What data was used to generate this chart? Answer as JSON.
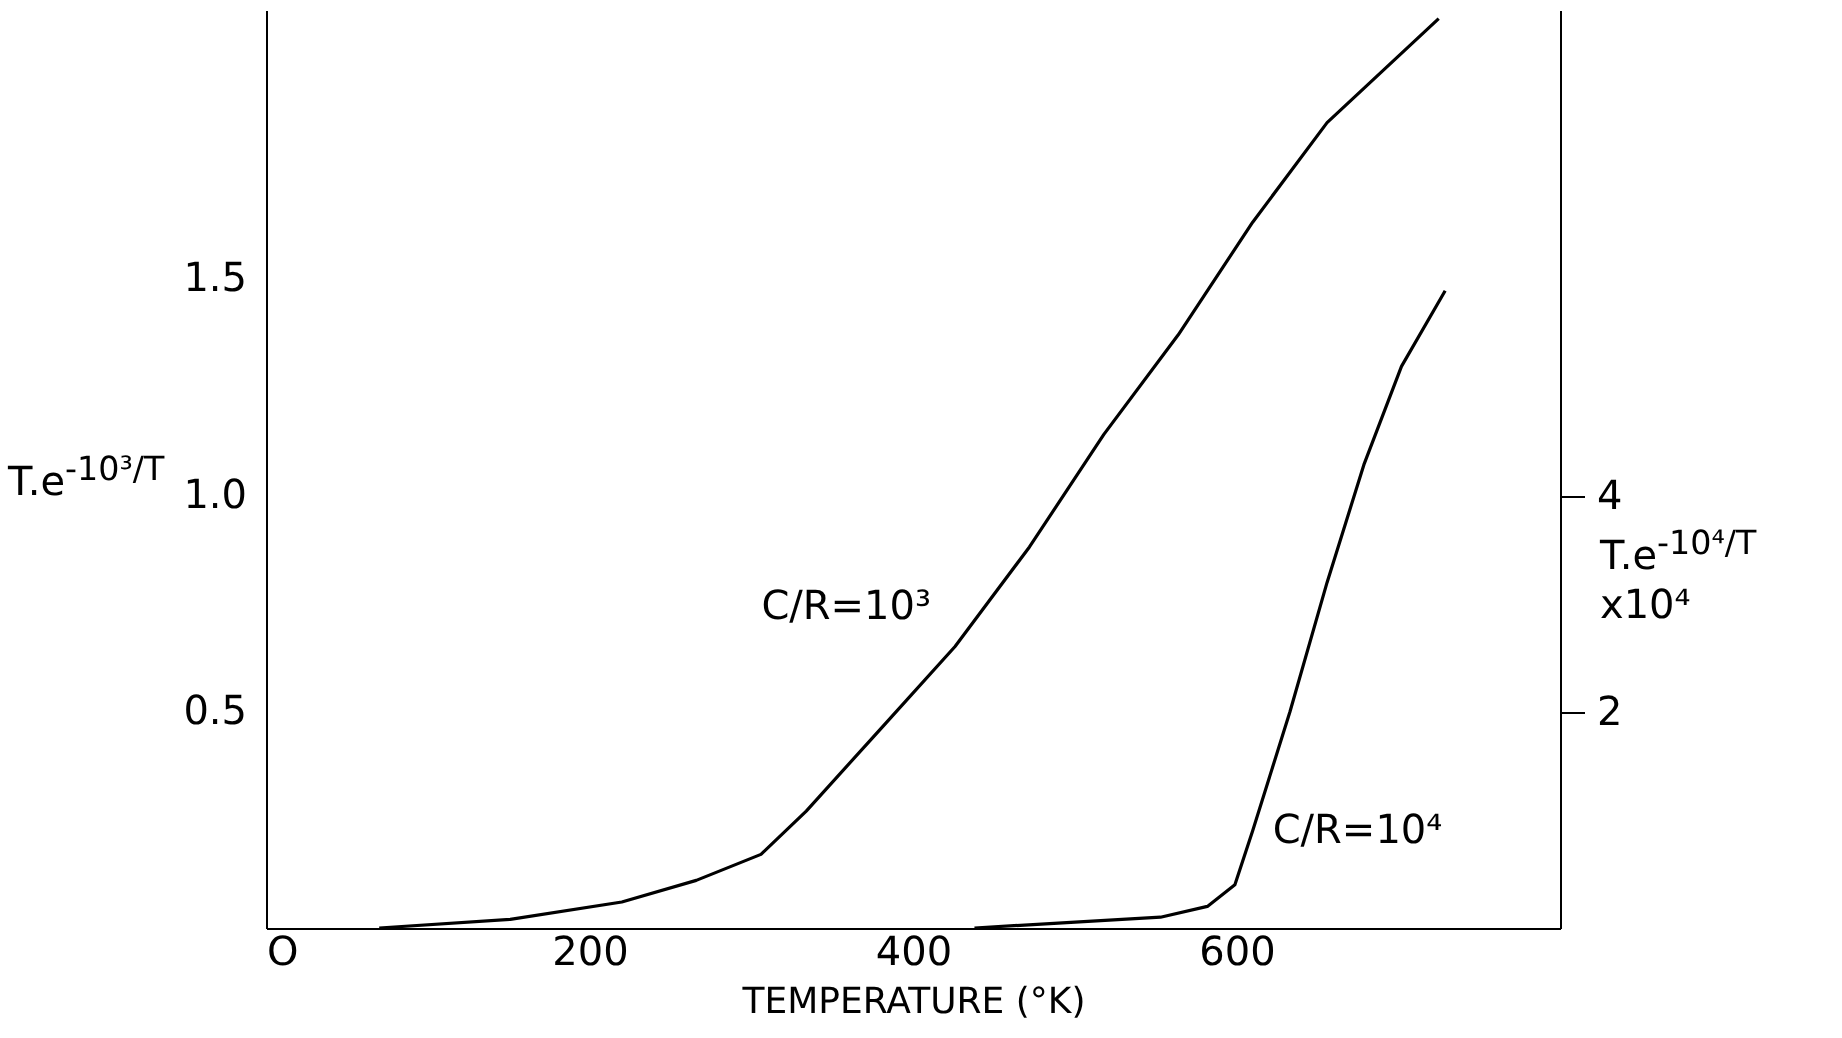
{
  "chart_data": {
    "type": "line",
    "xlabel": "TEMPERATURE (°K)",
    "ylabel": "T.e$^{-10³/T}$",
    "y2label": "T.e$^{-10⁴/T}$ x10⁴",
    "xlim": [
      0,
      800
    ],
    "xticks": [
      {
        "value": 0,
        "label": "O"
      },
      200,
      400,
      600
    ],
    "ylim": [
      0,
      2.12
    ],
    "yticks": [
      0.5,
      {
        "value": 1,
        "label": "1.0"
      },
      1.5
    ],
    "y2lim": [
      0,
      8.5
    ],
    "y2ticks": [
      2,
      4
    ],
    "grid": false,
    "line_style": "solid",
    "marker": "none",
    "series": [
      {
        "name": "C/R=10³",
        "color": "#000000",
        "x": [
          70,
          151,
          220,
          266,
          306,
          334,
          380,
          426,
          472,
          518,
          564,
          610,
          656,
          725
        ],
        "values": [
          0,
          0.02,
          0.06,
          0.11,
          0.17,
          0.27,
          0.46,
          0.65,
          0.88,
          1.14,
          1.37,
          1.63,
          1.86,
          2.1
        ]
      },
      {
        "name": "C/R=10⁴",
        "color": "#000000",
        "axis": "y2",
        "x": [
          438,
          495,
          553,
          582,
          599,
          610,
          633,
          656,
          679,
          702,
          729
        ],
        "values": [
          0,
          0.05,
          0.1,
          0.2,
          0.4,
          0.9,
          2,
          3.2,
          4.3,
          5.2,
          5.9
        ]
      }
    ]
  }
}
